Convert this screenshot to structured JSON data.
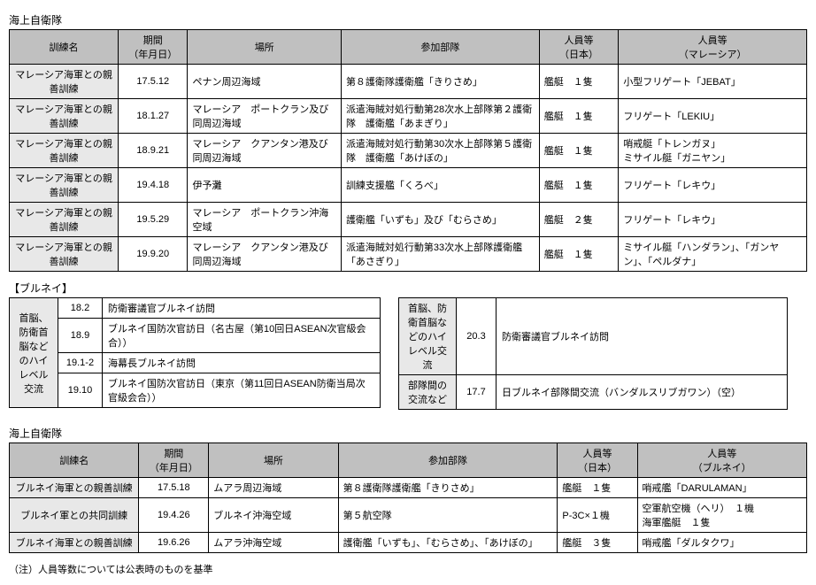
{
  "section1": {
    "label": "海上自衛隊"
  },
  "table1": {
    "headers": {
      "name": "訓練名",
      "date": "期間\n（年月日）",
      "place": "場所",
      "units": "参加部隊",
      "jp": "人員等\n（日本）",
      "other": "人員等\n（マレーシア）"
    },
    "rows": [
      {
        "name": "マレーシア海軍との親善訓練",
        "date": "17.5.12",
        "place": "ペナン周辺海域",
        "units": "第８護衛隊護衛艦「きりさめ」",
        "jp": "艦艇　１隻",
        "other": "小型フリゲート「JEBAT」"
      },
      {
        "name": "マレーシア海軍との親善訓練",
        "date": "18.1.27",
        "place": "マレーシア　ポートクラン及び同周辺海域",
        "units": "派遣海賊対処行動第28次水上部隊第２護衛隊　護衛艦「あまぎり」",
        "jp": "艦艇　１隻",
        "other": "フリゲート「LEKIU」"
      },
      {
        "name": "マレーシア海軍との親善訓練",
        "date": "18.9.21",
        "place": "マレーシア　クアンタン港及び同周辺海域",
        "units": "派遣海賊対処行動第30次水上部隊第５護衛隊　護衛艦「あけぼの」",
        "jp": "艦艇　１隻",
        "other": "哨戒艇「トレンガヌ」\nミサイル艇「ガニヤン」"
      },
      {
        "name": "マレーシア海軍との親善訓練",
        "date": "19.4.18",
        "place": "伊予灘",
        "units": "訓練支援艦「くろべ」",
        "jp": "艦艇　１隻",
        "other": "フリゲート「レキウ」"
      },
      {
        "name": "マレーシア海軍との親善訓練",
        "date": "19.5.29",
        "place": "マレーシア　ポートクラン沖海空域",
        "units": "護衛艦「いずも」及び「むらさめ」",
        "jp": "艦艇　２隻",
        "other": "フリゲート「レキウ」"
      },
      {
        "name": "マレーシア海軍との親善訓練",
        "date": "19.9.20",
        "place": "マレーシア　クアンタン港及び同周辺海域",
        "units": "派遣海賊対処行動第33次水上部隊護衛艦「あさぎり」",
        "jp": "艦艇　１隻",
        "other": "ミサイル艇「ハンダラン」、「ガンヤン」、「ペルダナ」"
      }
    ]
  },
  "brunei": {
    "label": "【ブルネイ】"
  },
  "midLeft": {
    "header": "首脳、防衛首脳などのハイレベル交流",
    "items": [
      {
        "date": "18.2",
        "text": "防衛審議官ブルネイ訪問"
      },
      {
        "date": "18.9",
        "text": "ブルネイ国防次官訪日（名古屋（第10回日ASEAN次官級会合））"
      },
      {
        "date": "19.1-2",
        "text": "海幕長ブルネイ訪問"
      },
      {
        "date": "19.10",
        "text": "ブルネイ国防次官訪日（東京（第11回日ASEAN防衛当局次官級会合））"
      }
    ]
  },
  "midRight": {
    "r1header": "首脳、防衛首脳などのハイレベル交流",
    "r1date": "20.3",
    "r1text": "防衛審議官ブルネイ訪問",
    "r2header": "部隊間の交流など",
    "r2date": "17.7",
    "r2text": "日ブルネイ部隊間交流（バンダルスリブガワン）（空）"
  },
  "section2": {
    "label": "海上自衛隊"
  },
  "table2": {
    "headers": {
      "name": "訓練名",
      "date": "期間\n（年月日）",
      "place": "場所",
      "units": "参加部隊",
      "jp": "人員等\n（日本）",
      "other": "人員等\n（ブルネイ）"
    },
    "rows": [
      {
        "name": "ブルネイ海軍との親善訓練",
        "date": "17.5.18",
        "place": "ムアラ周辺海域",
        "units": "第８護衛隊護衛艦「きりさめ」",
        "jp": "艦艇　１隻",
        "other": "哨戒艦「DARULAMAN」"
      },
      {
        "name": "ブルネイ軍との共同訓練",
        "date": "19.4.26",
        "place": "ブルネイ沖海空域",
        "units": "第５航空隊",
        "jp": "P-3C×１機",
        "other": "空軍航空機（ヘリ）　１機\n海軍艦艇　１隻"
      },
      {
        "name": "ブルネイ海軍との親善訓練",
        "date": "19.6.26",
        "place": "ムアラ沖海空域",
        "units": "護衛艦「いずも」、「むらさめ」、「あけぼの」",
        "jp": "艦艇　３隻",
        "other": "哨戒艦「ダルタクワ」"
      }
    ]
  },
  "footnote": "（注）人員等数については公表時のものを基準"
}
